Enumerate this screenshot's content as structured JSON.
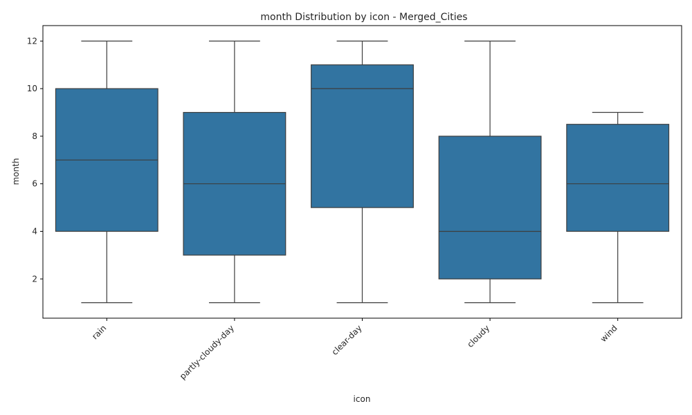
{
  "chart_data": {
    "type": "box",
    "title": "month Distribution by icon - Merged_Cities",
    "xlabel": "icon",
    "ylabel": "month",
    "ylim": [
      0.35,
      12.65
    ],
    "yticks": [
      2,
      4,
      6,
      8,
      10,
      12
    ],
    "grid": false,
    "legend": "none",
    "box_color": "#3274a1",
    "line_color": "#3d3d3d",
    "categories": [
      "rain",
      "partly-cloudy-day",
      "clear-day",
      "cloudy",
      "wind"
    ],
    "boxes": [
      {
        "category": "rain",
        "whisker_low": 1,
        "q1": 4,
        "median": 7,
        "q3": 10,
        "whisker_high": 12
      },
      {
        "category": "partly-cloudy-day",
        "whisker_low": 1,
        "q1": 3,
        "median": 6,
        "q3": 9,
        "whisker_high": 12
      },
      {
        "category": "clear-day",
        "whisker_low": 1,
        "q1": 5,
        "median": 10,
        "q3": 11,
        "whisker_high": 12
      },
      {
        "category": "cloudy",
        "whisker_low": 1,
        "q1": 2,
        "median": 4,
        "q3": 8,
        "whisker_high": 12
      },
      {
        "category": "wind",
        "whisker_low": 1,
        "q1": 4,
        "median": 6,
        "q3": 8.5,
        "whisker_high": 9
      }
    ]
  }
}
